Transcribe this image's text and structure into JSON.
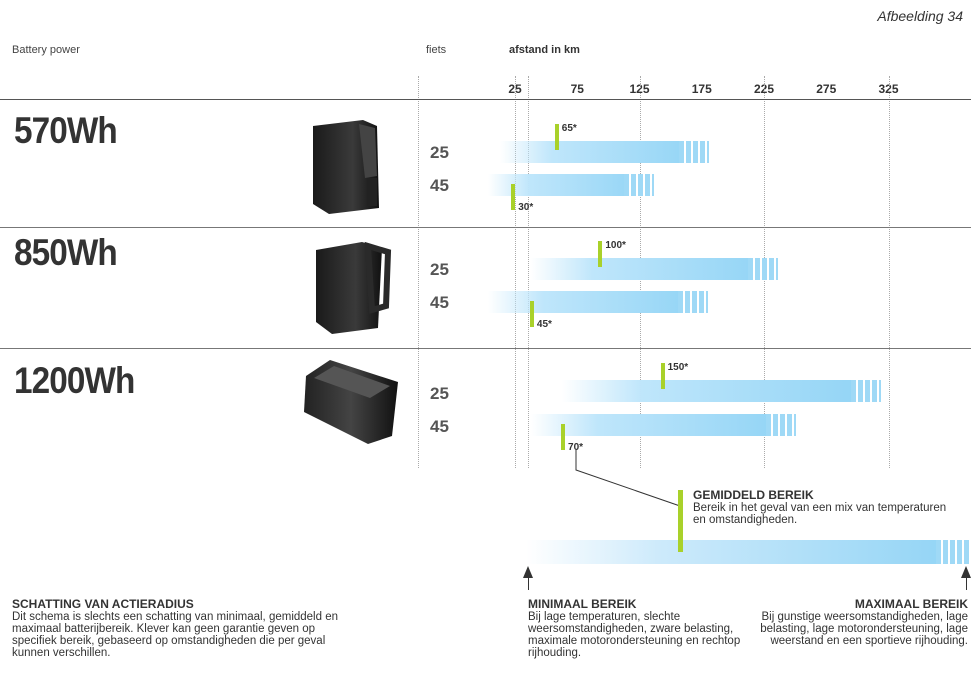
{
  "figure_label": "Afbeelding 34",
  "headers": {
    "battery": "Battery power",
    "fiets": "fiets",
    "distance": "afstand in km"
  },
  "chart_data": {
    "type": "bar",
    "title": "",
    "xlabel": "afstand in km",
    "x_ticks": [
      25,
      75,
      125,
      175,
      225,
      275,
      325
    ],
    "groups": [
      {
        "battery": "570Wh",
        "rows": [
          {
            "speed": "25",
            "min": 25,
            "avg": 65,
            "max": 181,
            "avg_label": "65*"
          },
          {
            "speed": "45",
            "min": 15,
            "avg": 30,
            "max": 137,
            "avg_label": "30*"
          }
        ]
      },
      {
        "battery": "850Wh",
        "rows": [
          {
            "speed": "25",
            "min": 50,
            "avg": 100,
            "max": 236,
            "avg_label": "100*"
          },
          {
            "speed": "45",
            "min": 15,
            "avg": 45,
            "max": 180,
            "avg_label": "45*"
          }
        ]
      },
      {
        "battery": "1200Wh",
        "rows": [
          {
            "speed": "25",
            "min": 75,
            "avg": 150,
            "max": 319,
            "avg_label": "150*"
          },
          {
            "speed": "45",
            "min": 50,
            "avg": 70,
            "max": 251,
            "avg_label": "70*"
          }
        ]
      }
    ]
  },
  "legend": {
    "avg_title": "GEMIDDELD BEREIK",
    "avg_text": "Bereik in het geval van een mix van temperaturen en omstandigheden.",
    "min_title": "MINIMAAL BEREIK",
    "min_text": "Bij lage temperaturen, slechte weersomstandigheden, zware belasting, maximale motorondersteuning en rechtop rijhouding.",
    "max_title": "MAXIMAAL BEREIK",
    "max_text": "Bij gunstige weersomstandigheden, lage belasting, lage motorondersteuning, lage weerstand en een sportieve rijhouding."
  },
  "note": {
    "title": "SCHATTING VAN ACTIERADIUS",
    "text": "Dit schema is slechts een schatting van minimaal, gemiddeld en maximaal batterijbereik. Klever kan geen garantie geven op specifiek bereik, gebaseerd op omstandigheden die per geval kunnen verschillen."
  },
  "colors": {
    "accent": "#a9d12a",
    "bar": "#8fd3f5"
  }
}
